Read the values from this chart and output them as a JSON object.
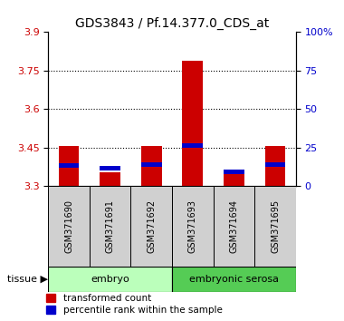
{
  "title": "GDS3843 / Pf.14.377.0_CDS_at",
  "samples": [
    "GSM371690",
    "GSM371691",
    "GSM371692",
    "GSM371693",
    "GSM371694",
    "GSM371695"
  ],
  "red_values": [
    3.455,
    3.355,
    3.455,
    3.79,
    3.355,
    3.455
  ],
  "blue_values": [
    3.37,
    3.36,
    3.375,
    3.45,
    3.348,
    3.375
  ],
  "blue_heights": [
    0.018,
    0.018,
    0.018,
    0.018,
    0.018,
    0.018
  ],
  "ylim_left": [
    3.3,
    3.9
  ],
  "yticks_left": [
    3.3,
    3.45,
    3.6,
    3.75,
    3.9
  ],
  "ytick_labels_left": [
    "3.3",
    "3.45",
    "3.6",
    "3.75",
    "3.9"
  ],
  "ylim_right": [
    0,
    100
  ],
  "yticks_right": [
    0,
    25,
    50,
    75,
    100
  ],
  "ytick_labels_right": [
    "0",
    "25",
    "50",
    "75",
    "100%"
  ],
  "groups": [
    {
      "label": "embryo",
      "start": 0,
      "end": 3,
      "color": "#bbffbb"
    },
    {
      "label": "embryonic serosa",
      "start": 3,
      "end": 6,
      "color": "#55cc55"
    }
  ],
  "tissue_label": "tissue",
  "red_color": "#cc0000",
  "blue_color": "#0000cc",
  "bar_width": 0.5,
  "base_value": 3.3,
  "gray_color": "#d0d0d0",
  "legend_items": [
    "transformed count",
    "percentile rank within the sample"
  ]
}
